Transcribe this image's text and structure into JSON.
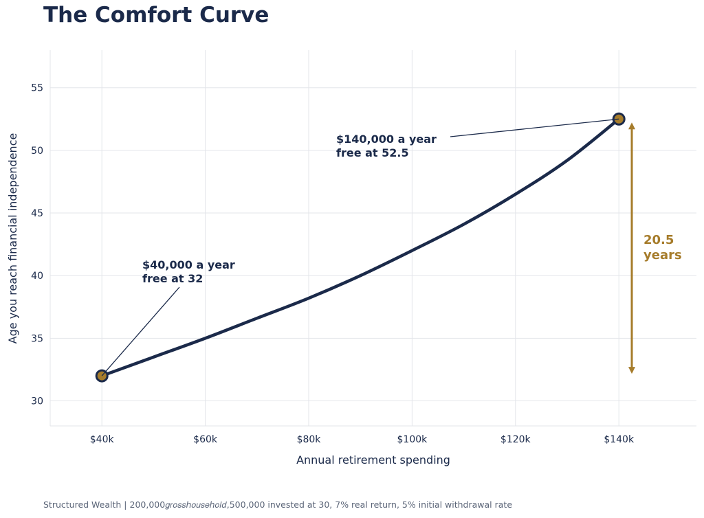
{
  "title": "The Comfort Curve",
  "footer": "Structured Wealth  |  200,000𝑔𝑟𝑜𝑠𝑠ℎ𝑜𝑢𝑠𝑒ℎ𝑜𝑙𝑑,500,000 invested at 30, 7% real return, 5% initial withdrawal rate",
  "colors": {
    "line": "#1b2a4a",
    "marker_fill": "#a67c2b",
    "gap_arrow": "#a67c2b",
    "grid": "#e3e5ea"
  },
  "chart_data": {
    "type": "line",
    "title": "The Comfort Curve",
    "xlabel": "Annual retirement spending",
    "ylabel": "Age you reach financial independence",
    "xlim": [
      30000,
      155000
    ],
    "ylim": [
      28,
      58
    ],
    "grid": true,
    "x_ticks": [
      40000,
      60000,
      80000,
      100000,
      120000,
      140000
    ],
    "x_tick_labels": [
      "$40k",
      "$60k",
      "$80k",
      "$100k",
      "$120k",
      "$140k"
    ],
    "y_ticks": [
      30,
      35,
      40,
      45,
      50,
      55
    ],
    "y_tick_labels": [
      "30",
      "35",
      "40",
      "45",
      "50",
      "55"
    ],
    "series": [
      {
        "x": [
          40000,
          50000,
          60000,
          70000,
          80000,
          90000,
          100000,
          110000,
          120000,
          130000,
          140000
        ],
        "y": [
          32.0,
          33.5,
          35.0,
          36.6,
          38.2,
          40.0,
          42.0,
          44.1,
          46.5,
          49.2,
          52.5
        ]
      }
    ],
    "highlight_points": [
      {
        "x": 40000,
        "y": 32.0
      },
      {
        "x": 140000,
        "y": 52.5
      }
    ],
    "annotations": [
      {
        "id": "low",
        "lines": [
          "$40,000 a year",
          "free at 32"
        ],
        "x": 40000,
        "y": 32.0
      },
      {
        "id": "high",
        "lines": [
          "$140,000 a year",
          "free at 52.5"
        ],
        "x": 140000,
        "y": 52.5
      }
    ],
    "gap": {
      "from": 32.0,
      "to": 52.5,
      "lines": [
        "20.5",
        "years"
      ]
    }
  }
}
